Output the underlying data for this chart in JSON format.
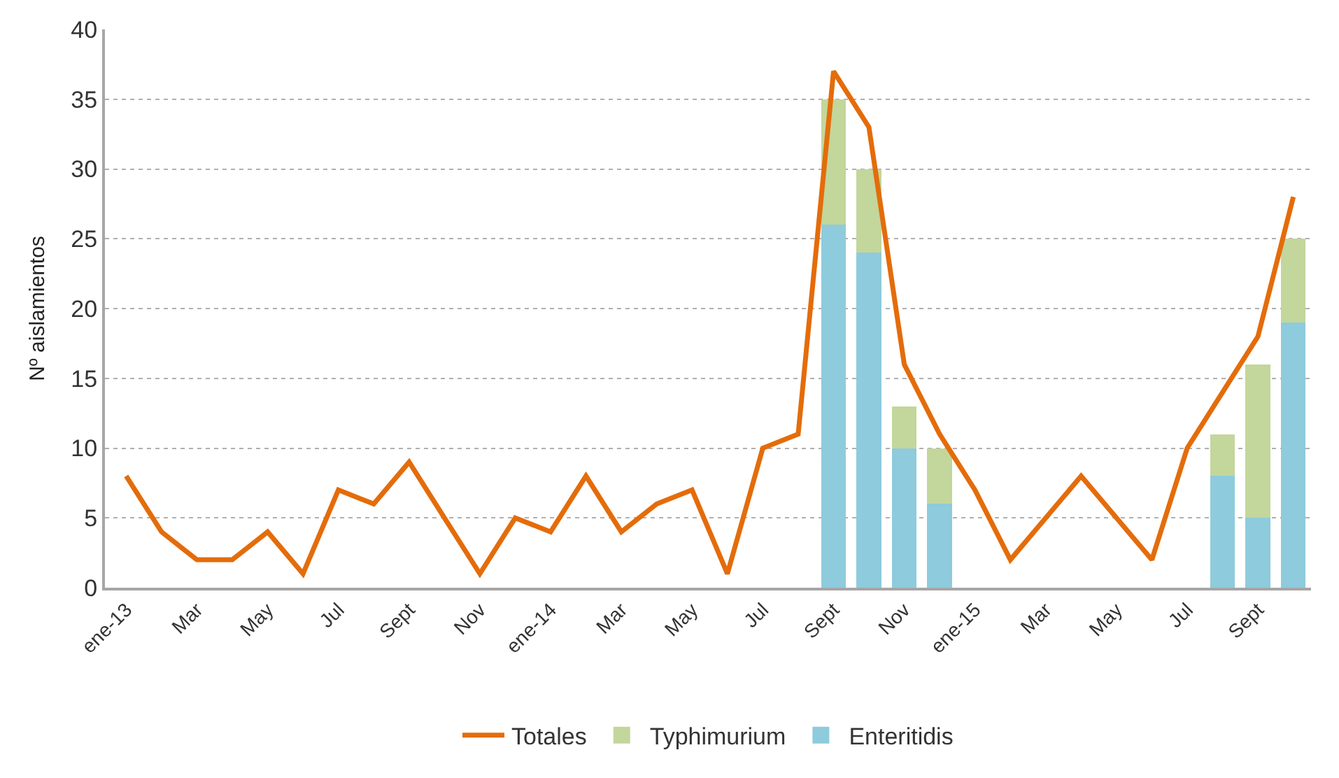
{
  "chart_data": {
    "type": "bar",
    "ylabel": "Nº aislamientos",
    "categories": [
      "ene-13",
      null,
      "Mar",
      null,
      "May",
      null,
      "Jul",
      null,
      "Sept",
      null,
      "Nov",
      null,
      "ene-14",
      null,
      "Mar",
      null,
      "May",
      null,
      "Jul",
      null,
      "Sept",
      null,
      "Nov",
      null,
      "ene-15",
      null,
      "Mar",
      null,
      "May",
      null,
      "Jul",
      null,
      "Sept",
      null
    ],
    "stacked": true,
    "series": [
      {
        "name": "Enteritidis",
        "color": "#8ecbdc",
        "values": [
          null,
          null,
          null,
          null,
          null,
          null,
          null,
          null,
          null,
          null,
          null,
          null,
          null,
          null,
          null,
          null,
          null,
          null,
          null,
          null,
          26,
          24,
          10,
          6,
          null,
          null,
          null,
          null,
          null,
          null,
          null,
          8,
          5,
          19
        ]
      },
      {
        "name": "Typhimurium",
        "color": "#c3d69b",
        "values": [
          null,
          null,
          null,
          null,
          null,
          null,
          null,
          null,
          null,
          null,
          null,
          null,
          null,
          null,
          null,
          null,
          null,
          null,
          null,
          null,
          9,
          6,
          3,
          4,
          null,
          null,
          null,
          null,
          null,
          null,
          null,
          3,
          11,
          6
        ]
      },
      {
        "name": "Totales",
        "type": "line",
        "color": "#e46c0a",
        "values": [
          8,
          4,
          2,
          2,
          4,
          1,
          7,
          6,
          9,
          5,
          1,
          5,
          4,
          8,
          4,
          6,
          7,
          1,
          10,
          11,
          37,
          33,
          16,
          11,
          7,
          2,
          5,
          8,
          5,
          2,
          10,
          14,
          18,
          28
        ]
      }
    ],
    "ylim": [
      0,
      40
    ],
    "yticks": [
      0,
      5,
      10,
      15,
      20,
      25,
      30,
      35,
      40
    ],
    "grid": "y",
    "legend": "bottom",
    "marker": "none",
    "line_style": "solid"
  }
}
